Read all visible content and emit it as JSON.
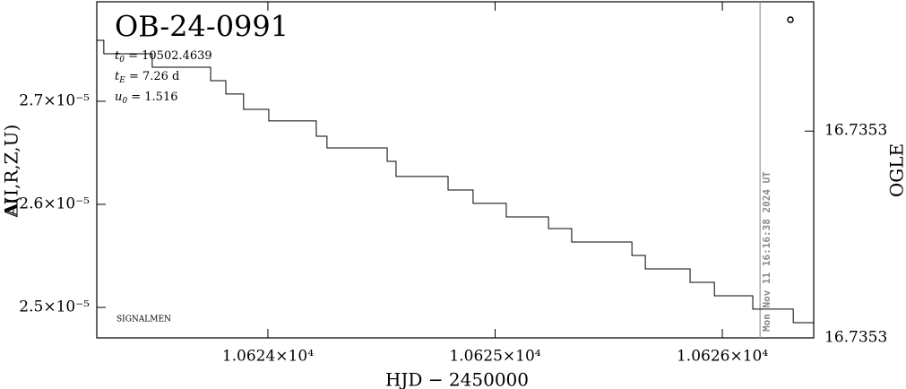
{
  "chart_data": {
    "type": "line",
    "title": "OB-24-0991",
    "x_label": "HJD − 2450000",
    "y_label": "A(I,R,Z,U)",
    "y_label_overlay": "ΔI",
    "y2_label": "OGLE",
    "xlim": [
      10623.247,
      10626.402
    ],
    "xticks": [
      {
        "value": 10624,
        "label": "1.0624×10⁴"
      },
      {
        "value": 10625,
        "label": "1.0625×10⁴"
      },
      {
        "value": 10626,
        "label": "1.0626×10⁴"
      }
    ],
    "ylim": [
      2.4704e-05,
      2.7965e-05
    ],
    "yticks": [
      {
        "value": 2.5e-05,
        "label": "2.5×10⁻⁵"
      },
      {
        "value": 2.6e-05,
        "label": "2.6×10⁻⁵"
      },
      {
        "value": 2.7e-05,
        "label": "2.7×10⁻⁵"
      }
    ],
    "y2lim": [
      16.73526,
      16.73539
    ],
    "y2ticks": [
      {
        "value": 16.73526,
        "label": "16.7353"
      },
      {
        "value": 16.73534,
        "label": "16.7353"
      }
    ],
    "annotations": [
      {
        "symbol": "t",
        "sub": "0",
        "text": " = 10502.4639"
      },
      {
        "symbol": "t",
        "sub": "E",
        "text": " = 7.26 d"
      },
      {
        "symbol": "u",
        "sub": "0",
        "text": " = 1.516"
      }
    ],
    "credit": "SIGNALMEN",
    "now_line": {
      "x": 10626.166,
      "label": "Mon Nov 11 16:16:38 2024 UT"
    },
    "series": [
      {
        "color": "#000000",
        "x": [
          10623.247,
          10623.278,
          10623.278,
          10623.491,
          10623.491,
          10623.748,
          10623.748,
          10623.815,
          10623.815,
          10623.893,
          10623.893,
          10624.004,
          10624.004,
          10624.213,
          10624.213,
          10624.26,
          10624.26,
          10624.525,
          10624.525,
          10624.564,
          10624.564,
          10624.793,
          10624.793,
          10624.903,
          10624.903,
          10625.049,
          10625.049,
          10625.235,
          10625.235,
          10625.337,
          10625.337,
          10625.602,
          10625.602,
          10625.661,
          10625.661,
          10625.858,
          10625.858,
          10625.965,
          10625.965,
          10626.134,
          10626.134,
          10626.312,
          10626.312,
          10626.402
        ],
        "values": [
          2.7591e-05,
          2.7591e-05,
          2.7461e-05,
          2.7461e-05,
          2.733e-05,
          2.733e-05,
          2.72e-05,
          2.72e-05,
          2.707e-05,
          2.707e-05,
          2.6922e-05,
          2.6922e-05,
          2.6809e-05,
          2.6809e-05,
          2.6661e-05,
          2.6661e-05,
          2.6548e-05,
          2.6548e-05,
          2.6417e-05,
          2.6417e-05,
          2.627e-05,
          2.627e-05,
          2.6139e-05,
          2.6139e-05,
          2.6009e-05,
          2.6009e-05,
          2.5878e-05,
          2.5878e-05,
          2.5765e-05,
          2.5765e-05,
          2.5635e-05,
          2.5635e-05,
          2.5504e-05,
          2.5504e-05,
          2.5374e-05,
          2.5374e-05,
          2.5243e-05,
          2.5243e-05,
          2.5113e-05,
          2.5113e-05,
          2.4983e-05,
          2.4983e-05,
          2.4852e-05,
          2.4852e-05
        ]
      }
    ]
  }
}
